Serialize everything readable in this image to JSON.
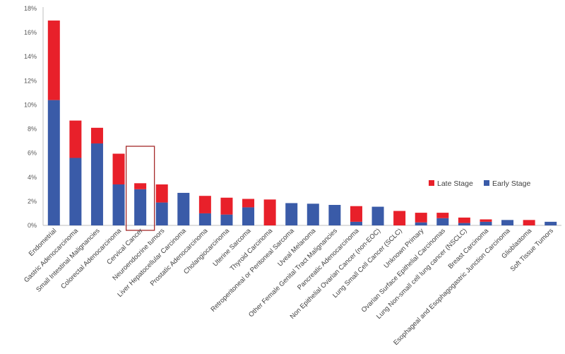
{
  "chart_data": {
    "type": "bar",
    "stacked": true,
    "categories": [
      "Endometrial",
      "Gastric Adenocarcinoma",
      "Small Intestinal Malignancies",
      "Colorectal Adenocarcinoma",
      "Cervical Cancer",
      "Neuroendocrine tumors",
      "Liver Hepatocellular Carcinoma",
      "Prostatic Adenocarcinoma",
      "Cholangiocarcinoma",
      "Uterine Sarcoma",
      "Thyroid Carcinoma",
      "Retroperitoneal or Peritoneal Sarcoma",
      "Uveal Melanoma",
      "Other Female Genital Tract Malignancies",
      "Pancreatic Adenocarcinoma",
      "Non Epithelial Ovarian Cancer (non-EOC)",
      "Lung Small Cell Cancer (SCLC)",
      "Unknown Primary",
      "Ovarian Surface Epithelial Carcinomas",
      "Lung Non-small cell lung cancer (NSCLC)",
      "Breast Carcinoma",
      "Esophageal and Esophagogastric Junction Carcinoma",
      "Glioblastoma",
      "Soft Tissue Tumors"
    ],
    "series": [
      {
        "name": "Early Stage",
        "color": "#3a5ba8",
        "values": [
          10.4,
          5.6,
          6.8,
          3.4,
          3.0,
          1.9,
          2.7,
          1.0,
          0.9,
          1.5,
          0.0,
          1.85,
          1.8,
          1.7,
          0.3,
          1.55,
          0.0,
          0.25,
          0.6,
          0.2,
          0.3,
          0.45,
          0.0,
          0.3
        ]
      },
      {
        "name": "Late Stage",
        "color": "#e8202a",
        "values": [
          6.6,
          3.1,
          1.3,
          2.55,
          0.5,
          1.5,
          0.0,
          1.45,
          1.4,
          0.7,
          2.15,
          0.0,
          0.0,
          0.0,
          1.3,
          0.0,
          1.2,
          0.8,
          0.45,
          0.45,
          0.2,
          0.0,
          0.45,
          0.0
        ]
      }
    ],
    "y_ticks": [
      "0%",
      "2%",
      "4%",
      "6%",
      "8%",
      "10%",
      "12%",
      "14%",
      "16%",
      "18%"
    ],
    "ylim": [
      0,
      18
    ],
    "legend": [
      "Late Stage",
      "Early Stage"
    ],
    "legend_position": "right",
    "highlighted_category": "Cervical Cancer",
    "highlight_color": "#a52a2a",
    "grid": false
  }
}
